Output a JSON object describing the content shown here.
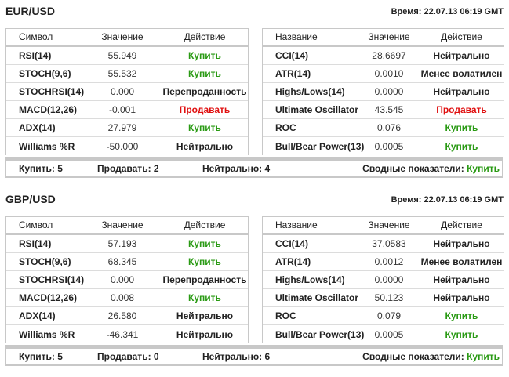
{
  "colors": {
    "buy": "#2a9a14",
    "sell": "#e01010",
    "neutral": "#222222",
    "border": "#c8c8c8"
  },
  "pairs": [
    {
      "title": "EUR/USD",
      "time": "Время: 22.07.13 06:19 GMT",
      "left_table": {
        "headers": [
          "Символ",
          "Значение",
          "Действие"
        ],
        "rows": [
          {
            "name": "RSI(14)",
            "value": "55.949",
            "action": "Купить",
            "type": "buy"
          },
          {
            "name": "STOCH(9,6)",
            "value": "55.532",
            "action": "Купить",
            "type": "buy"
          },
          {
            "name": "STOCHRSI(14)",
            "value": "0.000",
            "action": "Перепроданность",
            "type": "neutral"
          },
          {
            "name": "MACD(12,26)",
            "value": "-0.001",
            "action": "Продавать",
            "type": "sell"
          },
          {
            "name": "ADX(14)",
            "value": "27.979",
            "action": "Купить",
            "type": "buy"
          },
          {
            "name": "Williams %R",
            "value": "-50.000",
            "action": "Нейтрально",
            "type": "neutral"
          }
        ]
      },
      "right_table": {
        "headers": [
          "Название",
          "Значение",
          "Действие"
        ],
        "rows": [
          {
            "name": "CCI(14)",
            "value": "28.6697",
            "action": "Нейтрально",
            "type": "neutral"
          },
          {
            "name": "ATR(14)",
            "value": "0.0010",
            "action": "Менее волатилен",
            "type": "neutral"
          },
          {
            "name": "Highs/Lows(14)",
            "value": "0.0000",
            "action": "Нейтрально",
            "type": "neutral"
          },
          {
            "name": "Ultimate Oscillator",
            "value": "43.545",
            "action": "Продавать",
            "type": "sell"
          },
          {
            "name": "ROC",
            "value": "0.076",
            "action": "Купить",
            "type": "buy"
          },
          {
            "name": "Bull/Bear Power(13)",
            "value": "0.0005",
            "action": "Купить",
            "type": "buy"
          }
        ]
      },
      "summary": {
        "buy": "Купить: 5",
        "sell": "Продавать: 2",
        "neutral": "Нейтрально: 4",
        "overall_label": "Сводные показатели:",
        "overall_value": "Купить"
      }
    },
    {
      "title": "GBP/USD",
      "time": "Время: 22.07.13 06:19 GMT",
      "left_table": {
        "headers": [
          "Символ",
          "Значение",
          "Действие"
        ],
        "rows": [
          {
            "name": "RSI(14)",
            "value": "57.193",
            "action": "Купить",
            "type": "buy"
          },
          {
            "name": "STOCH(9,6)",
            "value": "68.345",
            "action": "Купить",
            "type": "buy"
          },
          {
            "name": "STOCHRSI(14)",
            "value": "0.000",
            "action": "Перепроданность",
            "type": "neutral"
          },
          {
            "name": "MACD(12,26)",
            "value": "0.008",
            "action": "Купить",
            "type": "buy"
          },
          {
            "name": "ADX(14)",
            "value": "26.580",
            "action": "Нейтрально",
            "type": "neutral"
          },
          {
            "name": "Williams %R",
            "value": "-46.341",
            "action": "Нейтрально",
            "type": "neutral"
          }
        ]
      },
      "right_table": {
        "headers": [
          "Название",
          "Значение",
          "Действие"
        ],
        "rows": [
          {
            "name": "CCI(14)",
            "value": "37.0583",
            "action": "Нейтрально",
            "type": "neutral"
          },
          {
            "name": "ATR(14)",
            "value": "0.0012",
            "action": "Менее волатилен",
            "type": "neutral"
          },
          {
            "name": "Highs/Lows(14)",
            "value": "0.0000",
            "action": "Нейтрально",
            "type": "neutral"
          },
          {
            "name": "Ultimate Oscillator",
            "value": "50.123",
            "action": "Нейтрально",
            "type": "neutral"
          },
          {
            "name": "ROC",
            "value": "0.079",
            "action": "Купить",
            "type": "buy"
          },
          {
            "name": "Bull/Bear Power(13)",
            "value": "0.0005",
            "action": "Купить",
            "type": "buy"
          }
        ]
      },
      "summary": {
        "buy": "Купить: 5",
        "sell": "Продавать: 0",
        "neutral": "Нейтрально: 6",
        "overall_label": "Сводные показатели:",
        "overall_value": "Купить"
      }
    }
  ]
}
